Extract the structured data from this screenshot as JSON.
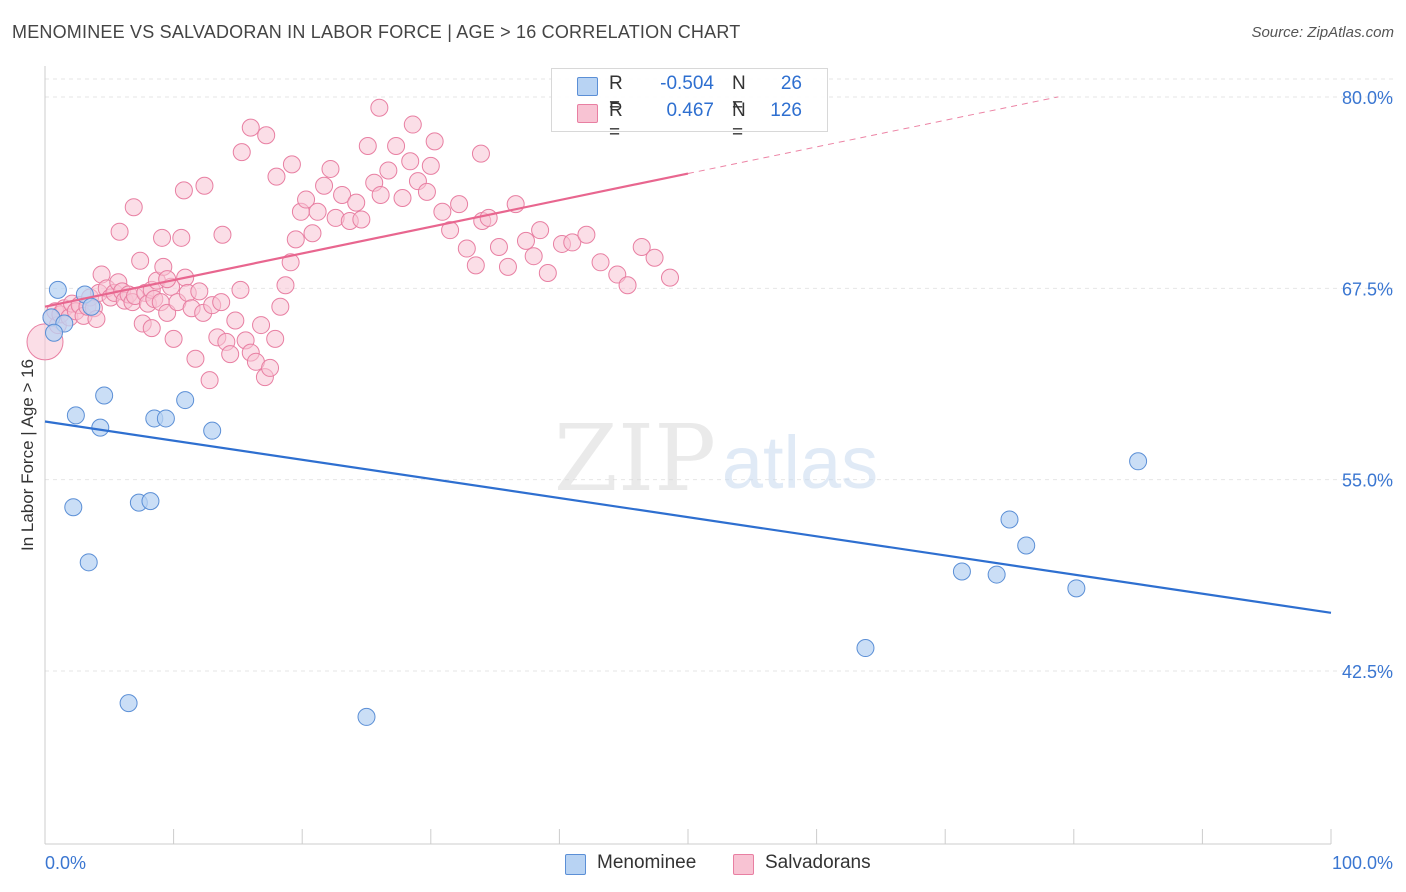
{
  "title": "MENOMINEE VS SALVADORAN IN LABOR FORCE | AGE > 16 CORRELATION CHART",
  "source": "Source: ZipAtlas.com",
  "watermark": {
    "zip": "ZIP",
    "atlas": "atlas"
  },
  "stats": {
    "menominee": {
      "r_label": "R =",
      "r_value": "-0.504",
      "n_label": "N =",
      "n_value": "26"
    },
    "salvadorans": {
      "r_label": "R =",
      "r_value": "0.467",
      "n_label": "N =",
      "n_value": "126"
    }
  },
  "legend": {
    "menominee": "Menominee",
    "salvadorans": "Salvadorans"
  },
  "colors": {
    "menominee_fill": "#b8d3f3",
    "menominee_stroke": "#5b8fd6",
    "menominee_line": "#2e6fd0",
    "salvadorans_fill": "#f8c3d3",
    "salvadorans_stroke": "#e87fa2",
    "salvadorans_line": "#e8668f",
    "axis_label": "#3a76d1",
    "grid": "#e6e6e6"
  },
  "chart_data": {
    "type": "scatter",
    "title": "MENOMINEE VS SALVADORAN IN LABOR FORCE | AGE > 16 CORRELATION CHART",
    "xlabel": "",
    "ylabel": "In Labor Force | Age > 16",
    "x_tick_labels": [
      "0.0%",
      "100.0%"
    ],
    "y_tick_labels": [
      "80.0%",
      "67.5%",
      "55.0%",
      "42.5%"
    ],
    "xlim": [
      0,
      100
    ],
    "ylim": [
      31.5,
      82.5
    ],
    "y_ticks": [
      80.0,
      67.5,
      55.0,
      42.5
    ],
    "grid": true,
    "legend_position": "bottom-center",
    "series": [
      {
        "name": "Menominee",
        "trend": {
          "x": [
            0,
            100
          ],
          "y": [
            58.8,
            46.3
          ]
        },
        "points": [
          {
            "x": 1.0,
            "y": 67.4
          },
          {
            "x": 3.1,
            "y": 67.1
          },
          {
            "x": 3.6,
            "y": 66.3
          },
          {
            "x": 0.5,
            "y": 65.6
          },
          {
            "x": 1.5,
            "y": 65.2
          },
          {
            "x": 0.7,
            "y": 64.6
          },
          {
            "x": 4.6,
            "y": 60.5
          },
          {
            "x": 2.4,
            "y": 59.2
          },
          {
            "x": 4.3,
            "y": 58.4
          },
          {
            "x": 8.5,
            "y": 59.0
          },
          {
            "x": 9.4,
            "y": 59.0
          },
          {
            "x": 10.9,
            "y": 60.2
          },
          {
            "x": 13.0,
            "y": 58.2
          },
          {
            "x": 2.2,
            "y": 53.2
          },
          {
            "x": 7.3,
            "y": 53.5
          },
          {
            "x": 8.2,
            "y": 53.6
          },
          {
            "x": 3.4,
            "y": 49.6
          },
          {
            "x": 6.5,
            "y": 40.4
          },
          {
            "x": 25.0,
            "y": 39.5
          },
          {
            "x": 85.0,
            "y": 56.2
          },
          {
            "x": 75.0,
            "y": 52.4
          },
          {
            "x": 76.3,
            "y": 50.7
          },
          {
            "x": 71.3,
            "y": 49.0
          },
          {
            "x": 74.0,
            "y": 48.8
          },
          {
            "x": 80.2,
            "y": 47.9
          },
          {
            "x": 63.8,
            "y": 44.0
          }
        ]
      },
      {
        "name": "Salvadorans",
        "trend": {
          "x": [
            0,
            50
          ],
          "y": [
            66.3,
            75.0
          ]
        },
        "points": [
          {
            "x": 0.0,
            "y": 64.0
          },
          {
            "x": 0.5,
            "y": 65.6
          },
          {
            "x": 0.8,
            "y": 66.0
          },
          {
            "x": 1.0,
            "y": 65.1
          },
          {
            "x": 1.2,
            "y": 65.8
          },
          {
            "x": 1.5,
            "y": 66.2
          },
          {
            "x": 1.9,
            "y": 65.6
          },
          {
            "x": 2.1,
            "y": 66.5
          },
          {
            "x": 2.4,
            "y": 66.0
          },
          {
            "x": 2.7,
            "y": 66.4
          },
          {
            "x": 3.0,
            "y": 65.7
          },
          {
            "x": 3.3,
            "y": 66.3
          },
          {
            "x": 3.5,
            "y": 66.9
          },
          {
            "x": 3.8,
            "y": 66.2
          },
          {
            "x": 4.0,
            "y": 65.5
          },
          {
            "x": 4.2,
            "y": 67.2
          },
          {
            "x": 4.4,
            "y": 68.4
          },
          {
            "x": 4.8,
            "y": 67.5
          },
          {
            "x": 5.1,
            "y": 66.9
          },
          {
            "x": 5.4,
            "y": 67.2
          },
          {
            "x": 5.7,
            "y": 67.9
          },
          {
            "x": 6.0,
            "y": 67.3
          },
          {
            "x": 6.2,
            "y": 66.7
          },
          {
            "x": 6.5,
            "y": 67.1
          },
          {
            "x": 6.8,
            "y": 66.6
          },
          {
            "x": 7.0,
            "y": 67.0
          },
          {
            "x": 7.4,
            "y": 69.3
          },
          {
            "x": 7.8,
            "y": 67.2
          },
          {
            "x": 7.6,
            "y": 65.2
          },
          {
            "x": 8.0,
            "y": 66.5
          },
          {
            "x": 8.3,
            "y": 67.4
          },
          {
            "x": 8.5,
            "y": 66.8
          },
          {
            "x": 8.3,
            "y": 64.9
          },
          {
            "x": 8.7,
            "y": 68.0
          },
          {
            "x": 9.0,
            "y": 66.6
          },
          {
            "x": 9.2,
            "y": 68.9
          },
          {
            "x": 9.5,
            "y": 65.9
          },
          {
            "x": 9.8,
            "y": 67.6
          },
          {
            "x": 9.1,
            "y": 70.8
          },
          {
            "x": 9.5,
            "y": 68.1
          },
          {
            "x": 10.0,
            "y": 64.2
          },
          {
            "x": 10.3,
            "y": 66.6
          },
          {
            "x": 10.6,
            "y": 70.8
          },
          {
            "x": 10.9,
            "y": 68.2
          },
          {
            "x": 11.1,
            "y": 67.2
          },
          {
            "x": 11.4,
            "y": 66.2
          },
          {
            "x": 11.7,
            "y": 62.9
          },
          {
            "x": 12.0,
            "y": 67.3
          },
          {
            "x": 12.3,
            "y": 65.9
          },
          {
            "x": 12.8,
            "y": 61.5
          },
          {
            "x": 13.0,
            "y": 66.4
          },
          {
            "x": 13.4,
            "y": 64.3
          },
          {
            "x": 13.7,
            "y": 66.6
          },
          {
            "x": 14.1,
            "y": 64.0
          },
          {
            "x": 14.4,
            "y": 63.2
          },
          {
            "x": 14.8,
            "y": 65.4
          },
          {
            "x": 15.2,
            "y": 67.4
          },
          {
            "x": 15.6,
            "y": 64.1
          },
          {
            "x": 16.0,
            "y": 63.3
          },
          {
            "x": 16.4,
            "y": 62.7
          },
          {
            "x": 16.8,
            "y": 65.1
          },
          {
            "x": 17.1,
            "y": 61.7
          },
          {
            "x": 17.5,
            "y": 62.3
          },
          {
            "x": 17.9,
            "y": 64.2
          },
          {
            "x": 18.3,
            "y": 66.3
          },
          {
            "x": 18.7,
            "y": 67.7
          },
          {
            "x": 19.1,
            "y": 69.2
          },
          {
            "x": 19.5,
            "y": 70.7
          },
          {
            "x": 19.9,
            "y": 72.5
          },
          {
            "x": 20.3,
            "y": 73.3
          },
          {
            "x": 20.8,
            "y": 71.1
          },
          {
            "x": 21.2,
            "y": 72.5
          },
          {
            "x": 21.7,
            "y": 74.2
          },
          {
            "x": 22.2,
            "y": 75.3
          },
          {
            "x": 22.6,
            "y": 72.1
          },
          {
            "x": 23.1,
            "y": 73.6
          },
          {
            "x": 23.7,
            "y": 71.9
          },
          {
            "x": 24.2,
            "y": 73.1
          },
          {
            "x": 24.6,
            "y": 72.0
          },
          {
            "x": 25.1,
            "y": 76.8
          },
          {
            "x": 25.6,
            "y": 74.4
          },
          {
            "x": 26.1,
            "y": 73.6
          },
          {
            "x": 26.7,
            "y": 75.2
          },
          {
            "x": 27.3,
            "y": 76.8
          },
          {
            "x": 27.8,
            "y": 73.4
          },
          {
            "x": 28.4,
            "y": 75.8
          },
          {
            "x": 29.0,
            "y": 74.5
          },
          {
            "x": 29.7,
            "y": 73.8
          },
          {
            "x": 30.3,
            "y": 77.1
          },
          {
            "x": 30.9,
            "y": 72.5
          },
          {
            "x": 31.5,
            "y": 71.3
          },
          {
            "x": 32.2,
            "y": 73.0
          },
          {
            "x": 32.8,
            "y": 70.1
          },
          {
            "x": 33.5,
            "y": 69.0
          },
          {
            "x": 34.0,
            "y": 71.9
          },
          {
            "x": 34.5,
            "y": 72.1
          },
          {
            "x": 35.3,
            "y": 70.2
          },
          {
            "x": 36.0,
            "y": 68.9
          },
          {
            "x": 36.6,
            "y": 73.0
          },
          {
            "x": 37.4,
            "y": 70.6
          },
          {
            "x": 38.0,
            "y": 69.6
          },
          {
            "x": 38.5,
            "y": 71.3
          },
          {
            "x": 39.1,
            "y": 68.5
          },
          {
            "x": 40.2,
            "y": 70.4
          },
          {
            "x": 41.0,
            "y": 70.5
          },
          {
            "x": 42.1,
            "y": 71.0
          },
          {
            "x": 43.2,
            "y": 69.2
          },
          {
            "x": 44.5,
            "y": 68.4
          },
          {
            "x": 45.3,
            "y": 67.7
          },
          {
            "x": 46.4,
            "y": 70.2
          },
          {
            "x": 47.4,
            "y": 69.5
          },
          {
            "x": 48.6,
            "y": 68.2
          },
          {
            "x": 5.8,
            "y": 71.2
          },
          {
            "x": 6.9,
            "y": 72.8
          },
          {
            "x": 10.8,
            "y": 73.9
          },
          {
            "x": 12.4,
            "y": 74.2
          },
          {
            "x": 13.8,
            "y": 71.0
          },
          {
            "x": 15.3,
            "y": 76.4
          },
          {
            "x": 16.0,
            "y": 78.0
          },
          {
            "x": 17.2,
            "y": 77.5
          },
          {
            "x": 18.0,
            "y": 74.8
          },
          {
            "x": 19.2,
            "y": 75.6
          },
          {
            "x": 26.0,
            "y": 79.3
          },
          {
            "x": 28.6,
            "y": 78.2
          },
          {
            "x": 30.0,
            "y": 75.5
          },
          {
            "x": 33.9,
            "y": 76.3
          }
        ]
      }
    ]
  }
}
